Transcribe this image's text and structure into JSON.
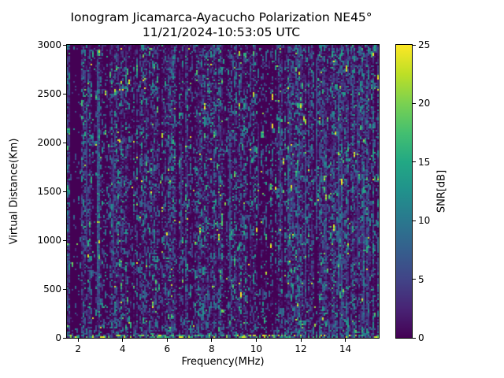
{
  "figure": {
    "background": "#ffffff",
    "text_color": "#000000"
  },
  "chart_data": {
    "type": "heatmap",
    "title_line1": "Ionogram Jicamarca-Ayacucho Polarization NE45°",
    "title_line2": "11/21/2024-10:53:05 UTC",
    "xlabel": "Frequency(MHz)",
    "ylabel": "Virtual Distance(Km)",
    "colorbar_label": "SNR[dB]",
    "x_range_mhz": [
      1.5,
      15.5
    ],
    "y_range_km": [
      0,
      3000
    ],
    "snr_range_db": [
      0,
      25
    ],
    "x_ticks": [
      2,
      4,
      6,
      8,
      10,
      12,
      14
    ],
    "y_ticks": [
      0,
      500,
      1000,
      1500,
      2000,
      2500,
      3000
    ],
    "colorbar_ticks": [
      0,
      5,
      10,
      15,
      20,
      25
    ],
    "grid": false,
    "legend": "colorbar-right",
    "colormap": {
      "name": "viridis",
      "stops": [
        "#440154",
        "#482475",
        "#414487",
        "#355f8d",
        "#2a788e",
        "#21918c",
        "#22a884",
        "#44bf70",
        "#7ad151",
        "#bddf26",
        "#fde725"
      ]
    },
    "content_description": "Dense random speckle noise over a dark-purple (~0 dB) background: faint blue-purple echoes (3-8 dB) everywhere, scattered teal points (10-16 dB), rare yellow points (18-25 dB). Quiet vertical bands near 1.65-2.15, 2.6-2.85, 3.1-3.35, 6.95-7.2 and 10.0-10.9 MHz. Bright dashed teal streak near 2.9 MHz; bluish vertical streak columns across 11.4-13.4 MHz; denser teal activity 13.4-15.5 MHz; bright clutter line along 0 km at all frequencies.",
    "noise_model": {
      "seed": 20241121,
      "cols": 198,
      "rows": 186,
      "background_max_db": 1.7,
      "speckle_prob": 0.3,
      "run_prob": 0.35,
      "default_streak_prob": 0.035,
      "default_streak_base_db": 3.5,
      "dark_col_prob": 0.07,
      "bottom_clutter_rows": 2,
      "bottom_clutter_prob": 0.55,
      "bands": [
        {
          "f0": 1.5,
          "f1": 1.68,
          "factor": 1.3
        },
        {
          "f0": 1.65,
          "f1": 2.15,
          "factor": 0.18
        },
        {
          "f0": 2.6,
          "f1": 2.85,
          "factor": 0.5
        },
        {
          "f0": 2.85,
          "f1": 3.0,
          "factor": 1.3,
          "streak_prob": 0.6,
          "streak_base": 7
        },
        {
          "f0": 3.1,
          "f1": 3.35,
          "factor": 0.45
        },
        {
          "f0": 6.95,
          "f1": 7.2,
          "factor": 0.5
        },
        {
          "f0": 10.0,
          "f1": 10.9,
          "factor": 0.5
        },
        {
          "f0": 11.4,
          "f1": 13.4,
          "factor": 1.15,
          "streak_prob": 0.25,
          "streak_base": 3.5
        },
        {
          "f0": 13.4,
          "f1": 15.5,
          "factor": 1.55,
          "streak_prob": 0.12,
          "streak_base": 4.5
        }
      ]
    }
  }
}
